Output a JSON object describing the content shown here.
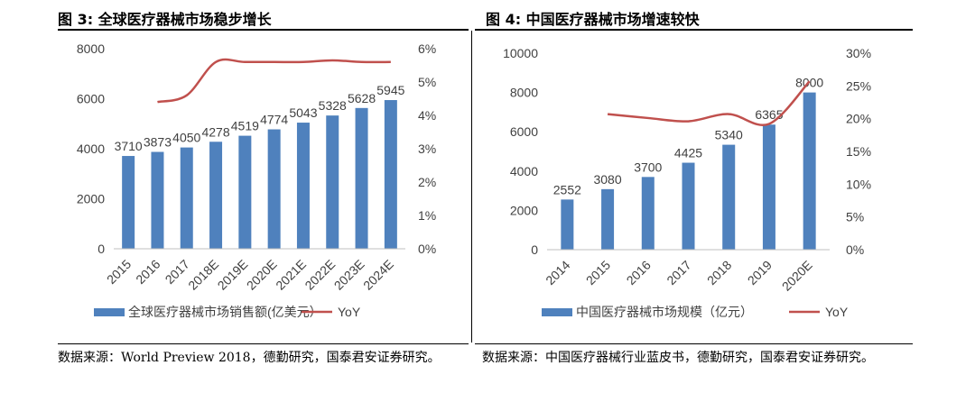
{
  "figures": [
    {
      "title": "图 3:  全球医疗器械市场稳步增长",
      "source": "数据来源：World Preview 2018，德勤研究，国泰君安证券研究。",
      "chart_data": {
        "type": "bar",
        "categories": [
          "2015",
          "2016",
          "2017",
          "2018E",
          "2019E",
          "2020E",
          "2021E",
          "2022E",
          "2023E",
          "2024E"
        ],
        "series": [
          {
            "name": "全球医疗器械市场销售额(亿美元）",
            "type": "bar",
            "axis": "left",
            "values": [
              3710,
              3873,
              4050,
              4278,
              4519,
              4774,
              5043,
              5328,
              5628,
              5945
            ],
            "color": "#4f81bd"
          },
          {
            "name": "YoY",
            "type": "line",
            "axis": "right",
            "values": [
              null,
              4.4,
              4.6,
              5.6,
              5.6,
              5.6,
              5.6,
              5.65,
              5.6,
              5.6
            ],
            "color": "#c0504d"
          }
        ],
        "y_left": {
          "min": 0,
          "max": 8000,
          "ticks": [
            0,
            2000,
            4000,
            6000,
            8000
          ],
          "tick_labels": [
            "0",
            "2000",
            "4000",
            "6000",
            "8000"
          ]
        },
        "y_right": {
          "min": 0,
          "max": 6,
          "ticks": [
            0,
            1,
            2,
            3,
            4,
            5,
            6
          ],
          "tick_labels": [
            "0%",
            "1%",
            "2%",
            "3%",
            "4%",
            "5%",
            "6%"
          ]
        },
        "data_labels": true,
        "grid": false,
        "legend": "bottom"
      }
    },
    {
      "title": "图 4:  中国医疗器械市场增速较快",
      "source": "数据来源：中国医疗器械行业蓝皮书，德勤研究，国泰君安证券研究。",
      "chart_data": {
        "type": "bar",
        "categories": [
          "2014",
          "2015",
          "2016",
          "2017",
          "2018",
          "2019",
          "2020E"
        ],
        "series": [
          {
            "name": "中国医疗器械市场规模（亿元）",
            "type": "bar",
            "axis": "left",
            "values": [
              2552,
              3080,
              3700,
              4425,
              5340,
              6365,
              8000
            ],
            "color": "#4f81bd"
          },
          {
            "name": "YoY",
            "type": "line",
            "axis": "right",
            "values": [
              null,
              20.7,
              20.1,
              19.6,
              20.7,
              19.2,
              25.7
            ],
            "color": "#c0504d"
          }
        ],
        "y_left": {
          "min": 0,
          "max": 10000,
          "ticks": [
            0,
            2000,
            4000,
            6000,
            8000,
            10000
          ],
          "tick_labels": [
            "0",
            "2000",
            "4000",
            "6000",
            "8000",
            "10000"
          ]
        },
        "y_right": {
          "min": 0,
          "max": 30,
          "ticks": [
            0,
            5,
            10,
            15,
            20,
            25,
            30
          ],
          "tick_labels": [
            "0%",
            "5%",
            "10%",
            "15%",
            "20%",
            "25%",
            "30%"
          ]
        },
        "data_labels": true,
        "grid": false,
        "legend": "bottom"
      }
    }
  ]
}
